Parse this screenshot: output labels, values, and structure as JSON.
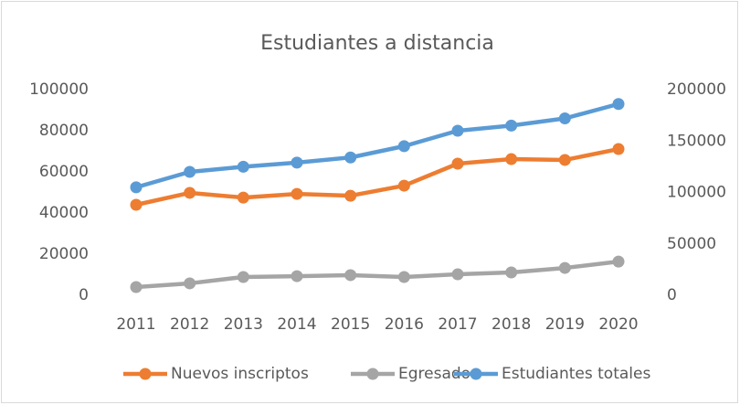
{
  "chart_data": {
    "type": "line",
    "title": "Estudiantes a distancia",
    "categories": [
      "2011",
      "2012",
      "2013",
      "2014",
      "2015",
      "2016",
      "2017",
      "2018",
      "2019",
      "2020"
    ],
    "series": [
      {
        "name": "Nuevos inscriptos",
        "color": "#ed7d31",
        "values": [
          44000,
          49800,
          47500,
          49300,
          48400,
          53300,
          64000,
          66200,
          65800,
          71100
        ]
      },
      {
        "name": "Egresados",
        "color": "#a5a5a5",
        "values": [
          4000,
          5800,
          8900,
          9300,
          9800,
          8900,
          10200,
          11100,
          13300,
          16400
        ]
      },
      {
        "name": "Estudiantes totales",
        "color": "#5b9bd5",
        "axis": "y2",
        "values": [
          105000,
          120000,
          125000,
          129000,
          134000,
          145000,
          160000,
          165000,
          172000,
          186000
        ]
      }
    ],
    "ylim": [
      0,
      100000
    ],
    "yticks": [
      0,
      20000,
      40000,
      60000,
      80000,
      100000
    ],
    "y2lim": [
      0,
      200000
    ],
    "y2ticks": [
      0,
      50000,
      100000,
      150000,
      200000
    ],
    "grid": false,
    "legend": "bottom"
  }
}
